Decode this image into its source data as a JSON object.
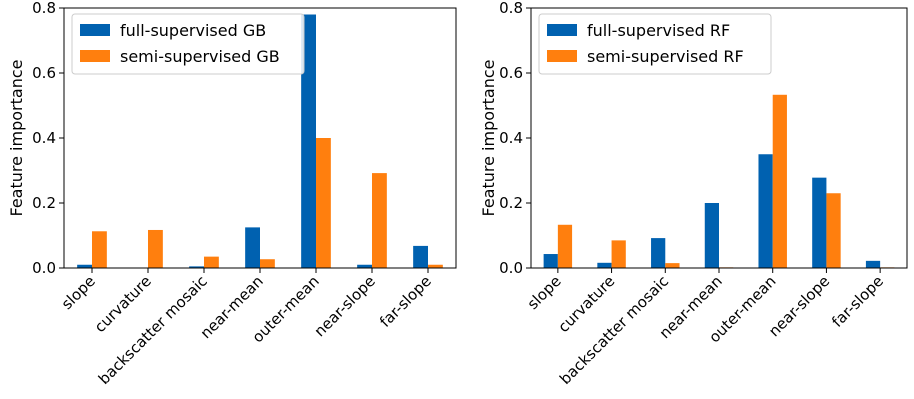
{
  "colors": {
    "full": "#0061b0",
    "semi": "#ff7f0e"
  },
  "chart_data": [
    {
      "type": "bar",
      "categories": [
        "slope",
        "curvature",
        "backscatter mosaic",
        "near-mean",
        "outer-mean",
        "near-slope",
        "far-slope"
      ],
      "series": [
        {
          "name": "full-supervised GB",
          "values": [
            0.01,
            0.0,
            0.005,
            0.125,
            0.78,
            0.01,
            0.068
          ]
        },
        {
          "name": "semi-supervised GB",
          "values": [
            0.113,
            0.117,
            0.035,
            0.027,
            0.4,
            0.292,
            0.01
          ]
        }
      ],
      "ylabel": "Feature importance",
      "ylim": [
        0,
        0.8
      ],
      "yticks": [
        "0.0",
        "0.2",
        "0.4",
        "0.6",
        "0.8"
      ],
      "legend": "top-left",
      "grid": false
    },
    {
      "type": "bar",
      "categories": [
        "slope",
        "curvature",
        "backscatter mosaic",
        "near-mean",
        "outer-mean",
        "near-slope",
        "far-slope"
      ],
      "series": [
        {
          "name": "full-supervised RF",
          "values": [
            0.043,
            0.016,
            0.092,
            0.2,
            0.35,
            0.278,
            0.022
          ]
        },
        {
          "name": "semi-supervised RF",
          "values": [
            0.133,
            0.085,
            0.015,
            0.002,
            0.533,
            0.23,
            0.002
          ]
        }
      ],
      "ylabel": "Feature importance",
      "ylim": [
        0,
        0.8
      ],
      "yticks": [
        "0.0",
        "0.2",
        "0.4",
        "0.6",
        "0.8"
      ],
      "legend": "top-left",
      "grid": false
    }
  ]
}
